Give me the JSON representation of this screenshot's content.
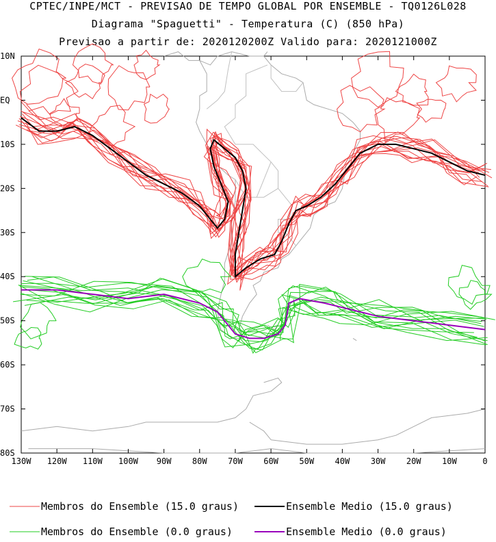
{
  "titles": {
    "line1": "CPTEC/INPE/MCT - PREVISAO DE TEMPO GLOBAL POR ENSEMBLE - TQ0126L028",
    "line2": "Diagrama \"Spaguetti\" - Temperatura (C) (850 hPa)",
    "line3": "Previsao a partir de: 2020120200Z  Valido para: 2020121000Z"
  },
  "axes": {
    "lat_labels": [
      "10N",
      "EQ",
      "10S",
      "20S",
      "30S",
      "40S",
      "50S",
      "60S",
      "70S",
      "80S"
    ],
    "lon_labels": [
      "130W",
      "120W",
      "110W",
      "100W",
      "90W",
      "80W",
      "70W",
      "60W",
      "50W",
      "40W",
      "30W",
      "20W",
      "10W",
      "0"
    ]
  },
  "legend": [
    {
      "label": "Membros do Ensemble (15.0 graus)",
      "color": "#ee4444"
    },
    {
      "label": "Ensemble Medio (15.0 graus)",
      "color": "#000000"
    },
    {
      "label": "Membros do Ensemble (0.0 graus)",
      "color": "#22cc22"
    },
    {
      "label": "Ensemble Medio (0.0 graus)",
      "color": "#9900bb"
    }
  ],
  "colors": {
    "member_15": "#ee4444",
    "mean_15": "#000000",
    "member_0": "#22cc22",
    "mean_0": "#9900bb",
    "coast": "#aaaaaa"
  },
  "chart_data": {
    "type": "map",
    "projection": "equirectangular",
    "lon_range": [
      -130,
      0
    ],
    "lat_range": [
      -80,
      10
    ],
    "variable": "Temperatura (C) 850 hPa",
    "isotherms": [
      15.0,
      0.0
    ],
    "mean_15": [
      [
        -130,
        -4
      ],
      [
        -125,
        -7
      ],
      [
        -120,
        -7
      ],
      [
        -115,
        -6
      ],
      [
        -110,
        -8
      ],
      [
        -105,
        -11
      ],
      [
        -100,
        -14
      ],
      [
        -95,
        -17
      ],
      [
        -90,
        -19
      ],
      [
        -85,
        -21
      ],
      [
        -80,
        -24
      ],
      [
        -77,
        -27
      ],
      [
        -75,
        -29
      ],
      [
        -73,
        -27
      ],
      [
        -72,
        -23
      ],
      [
        -74,
        -19
      ],
      [
        -76,
        -15
      ],
      [
        -77,
        -11
      ],
      [
        -76,
        -9
      ],
      [
        -73,
        -11
      ],
      [
        -70,
        -13
      ],
      [
        -68,
        -16
      ],
      [
        -67,
        -20
      ],
      [
        -68,
        -25
      ],
      [
        -69,
        -30
      ],
      [
        -70,
        -35
      ],
      [
        -70,
        -40
      ],
      [
        -67,
        -38
      ],
      [
        -63,
        -36
      ],
      [
        -59,
        -35
      ],
      [
        -57,
        -32
      ],
      [
        -55,
        -28
      ],
      [
        -53,
        -25
      ],
      [
        -50,
        -24
      ],
      [
        -46,
        -22
      ],
      [
        -42,
        -19
      ],
      [
        -39,
        -16
      ],
      [
        -35,
        -12
      ],
      [
        -30,
        -10
      ],
      [
        -25,
        -10
      ],
      [
        -20,
        -11
      ],
      [
        -15,
        -12
      ],
      [
        -10,
        -14
      ],
      [
        -5,
        -16
      ],
      [
        0,
        -17
      ]
    ],
    "mean_0": [
      [
        -130,
        -43
      ],
      [
        -120,
        -43
      ],
      [
        -110,
        -44
      ],
      [
        -100,
        -45
      ],
      [
        -90,
        -44
      ],
      [
        -80,
        -46
      ],
      [
        -75,
        -48
      ],
      [
        -72,
        -51
      ],
      [
        -70,
        -53
      ],
      [
        -66,
        -54
      ],
      [
        -62,
        -54
      ],
      [
        -58,
        -53
      ],
      [
        -56,
        -51
      ],
      [
        -55,
        -46
      ],
      [
        -52,
        -45
      ],
      [
        -45,
        -46
      ],
      [
        -40,
        -47
      ],
      [
        -30,
        -49
      ],
      [
        -20,
        -50
      ],
      [
        -10,
        -51
      ],
      [
        0,
        -52
      ]
    ]
  }
}
